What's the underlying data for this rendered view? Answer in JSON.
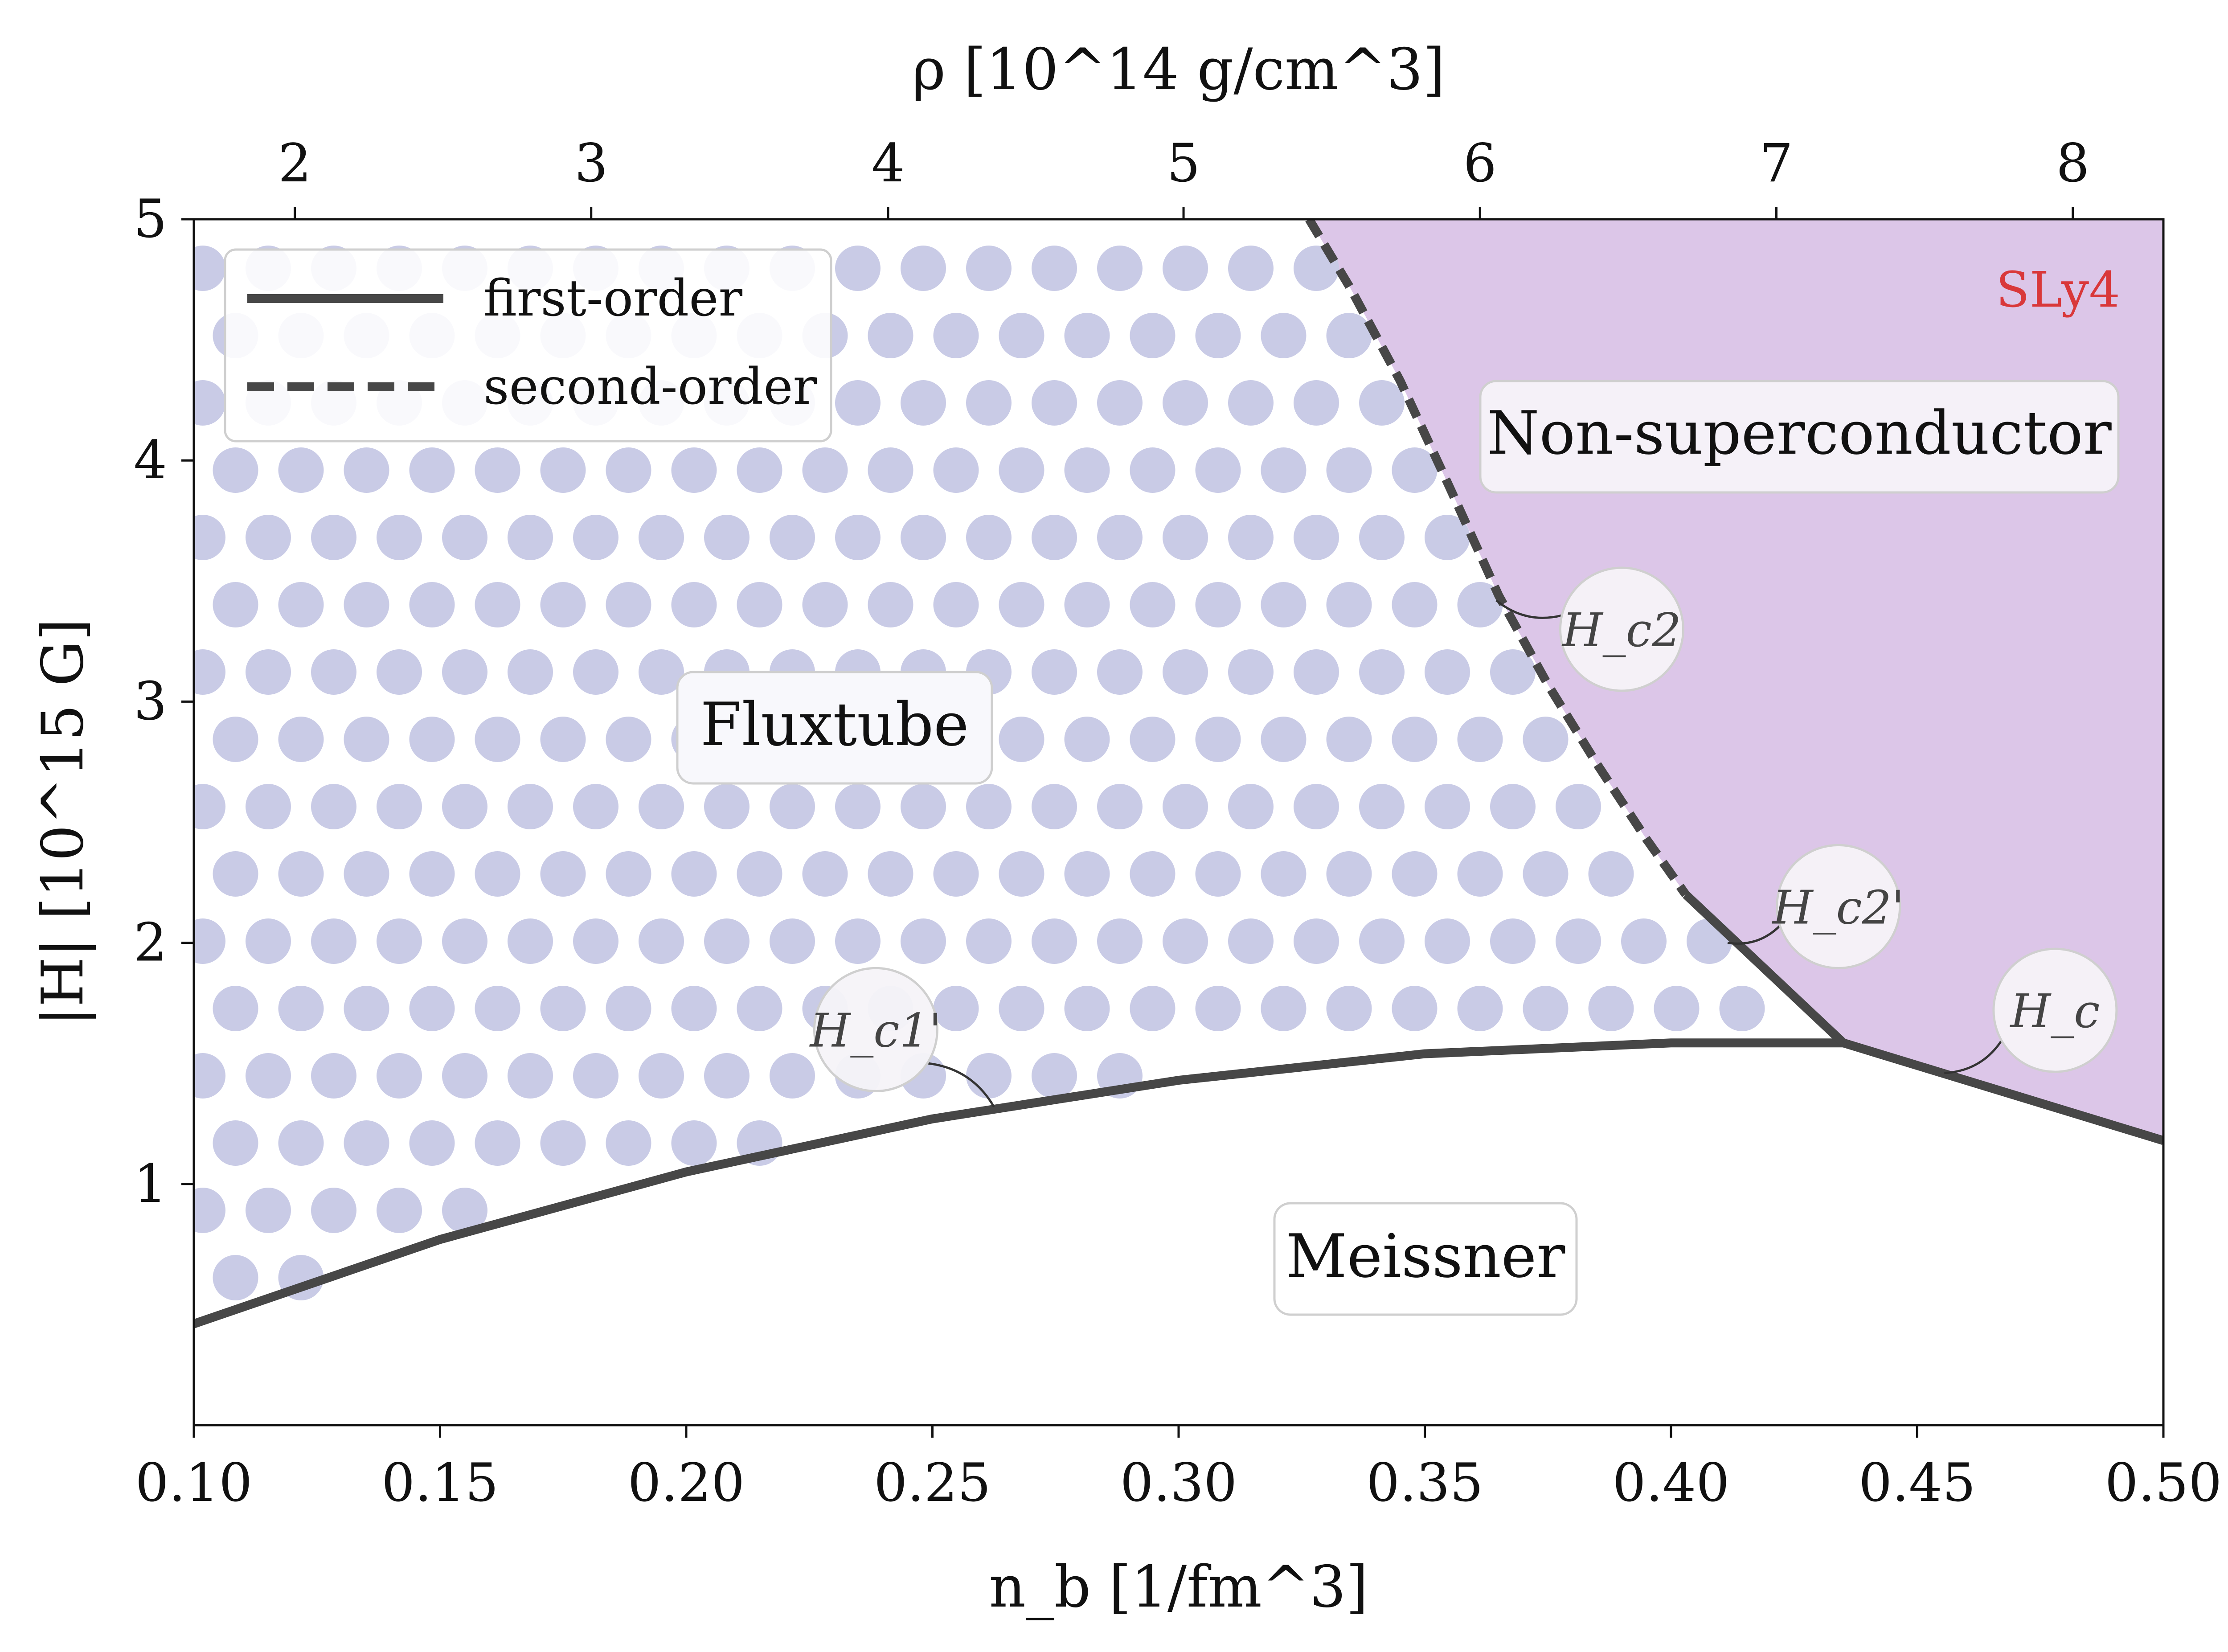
{
  "chart_data": {
    "type": "line",
    "title": "",
    "xlabel": "n_b [1/fm^3]",
    "ylabel": "|H| [10^15 G]",
    "top_xlabel": "ρ [10^14 g/cm^3]",
    "xlim": [
      0.1,
      0.5
    ],
    "ylim": [
      0.0,
      5.0
    ],
    "x_ticks": [
      "0.10",
      "0.15",
      "0.20",
      "0.25",
      "0.30",
      "0.35",
      "0.40",
      "0.45",
      "0.50"
    ],
    "y_ticks": [
      "1",
      "2",
      "3",
      "4",
      "5"
    ],
    "top_ticks": [
      "2",
      "3",
      "4",
      "5",
      "6",
      "7",
      "8"
    ],
    "top_tick_positions_nb": [
      0.1205,
      0.1807,
      0.241,
      0.301,
      0.3612,
      0.4214,
      0.4816
    ],
    "legend": [
      {
        "label": "first-order",
        "style": "solid"
      },
      {
        "label": "second-order",
        "style": "dashed"
      }
    ],
    "legend_location": "upper-left",
    "eos_label": "SLy4",
    "region_labels": {
      "non_super": "Non-superconductor",
      "fluxtube": "Fluxtube",
      "meissner": "Meissner"
    },
    "series": [
      {
        "name": "H_c1'",
        "order": "first",
        "x": [
          0.1,
          0.15,
          0.2,
          0.25,
          0.3,
          0.35,
          0.4,
          0.435
        ],
        "y": [
          0.42,
          0.77,
          1.05,
          1.27,
          1.43,
          1.54,
          1.585,
          1.585
        ]
      },
      {
        "name": "H_c2",
        "order": "second",
        "x": [
          0.3265,
          0.335,
          0.345,
          0.355,
          0.365,
          0.375,
          0.385,
          0.395,
          0.403
        ],
        "y": [
          5.0,
          4.71,
          4.33,
          3.89,
          3.44,
          3.07,
          2.74,
          2.43,
          2.2
        ]
      },
      {
        "name": "H_c2'",
        "order": "first",
        "x": [
          0.403,
          0.435
        ],
        "y": [
          2.2,
          1.585
        ]
      },
      {
        "name": "H_c",
        "order": "first",
        "x": [
          0.435,
          0.5
        ],
        "y": [
          1.585,
          1.18
        ]
      }
    ],
    "curve_labels": [
      {
        "text": "H_c2",
        "at": [
          0.39,
          3.3
        ],
        "points_to": [
          0.3645,
          3.42
        ]
      },
      {
        "text": "H_c2'",
        "at": [
          0.434,
          2.15
        ],
        "points_to": [
          0.4115,
          2.0
        ]
      },
      {
        "text": "H_c",
        "at": [
          0.478,
          1.72
        ],
        "points_to": [
          0.4555,
          1.46
        ]
      },
      {
        "text": "H_c1'",
        "at": [
          0.2385,
          1.64
        ],
        "points_to": [
          0.2625,
          1.32
        ]
      }
    ],
    "colors": {
      "line": "#474747",
      "non_super_fill": "#dcc6e8",
      "fluxtube_dots": "#c9cbe6",
      "eos_label": "#d9383a"
    },
    "grid": false
  }
}
